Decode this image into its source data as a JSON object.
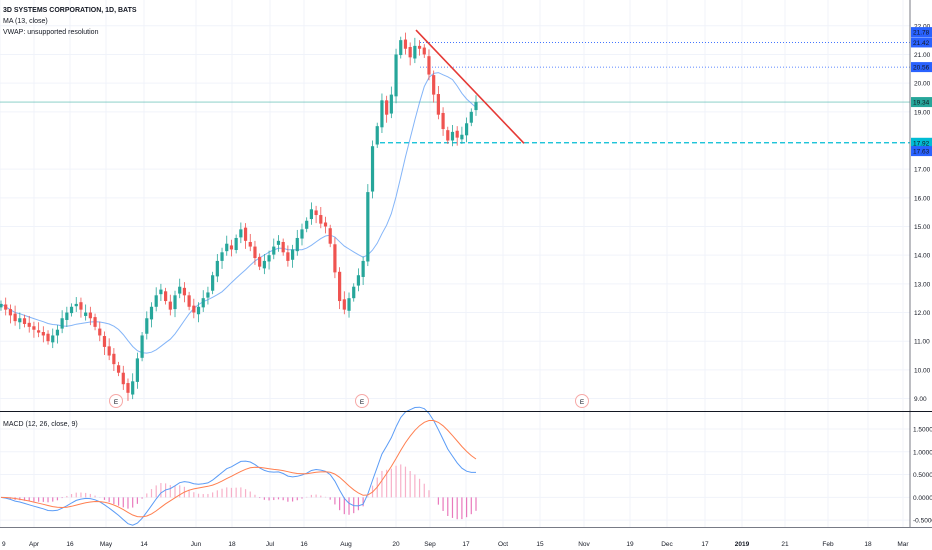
{
  "legend": {
    "symbol": "3D SYSTEMS CORPORATION, 1D, BATS",
    "ma": "MA (13, close)",
    "vwap": "VWAP: unsupported resolution",
    "macd": "MACD (12, 26, close, 9)"
  },
  "chart_data": [
    {
      "type": "candlestick",
      "title": "3D SYSTEMS CORPORATION, 1D, BATS",
      "ylim": [
        8.6,
        22.9
      ],
      "y_ticks": [
        "9.00",
        "10.00",
        "11.00",
        "12.00",
        "13.00",
        "14.00",
        "15.00",
        "16.00",
        "17.00",
        "19.00",
        "20.00",
        "21.00",
        "22.00"
      ],
      "x_ticks": [
        "9",
        "Apr",
        "16",
        "May",
        "14",
        "Jun",
        "18",
        "Jul",
        "16",
        "Aug",
        "20",
        "Sep",
        "17",
        "Oct",
        "15",
        "Nov",
        "19",
        "Dec",
        "17",
        "2019",
        "21",
        "Feb",
        "18",
        "Mar"
      ],
      "price_labels": [
        {
          "text": "21.78",
          "value": 21.78,
          "color": "#2962ff"
        },
        {
          "text": "21.42",
          "value": 21.42,
          "color": "#2962ff"
        },
        {
          "text": "20.56",
          "value": 20.56,
          "color": "#2962ff"
        },
        {
          "text": "19.34",
          "value": 19.34,
          "color": "#26a69a"
        },
        {
          "text": "17.92",
          "value": 17.92,
          "color": "#00bcd4"
        },
        {
          "text": "17.63",
          "value": 17.63,
          "color": "#2962ff"
        }
      ],
      "horizontal_lines": [
        {
          "value": 21.42,
          "style": "dotted",
          "color": "#2962ff"
        },
        {
          "value": 20.56,
          "style": "dotted",
          "color": "#2962ff"
        },
        {
          "value": 19.34,
          "style": "solid",
          "color": "#26a69a"
        },
        {
          "value": 17.92,
          "style": "dashed",
          "color": "#00bcd4"
        }
      ],
      "trendline": {
        "color": "#e53935",
        "from": {
          "date": "Aug 23",
          "value": 21.85
        },
        "to": {
          "date": "Oct 5",
          "value": 17.9
        }
      },
      "earnings_markers": [
        "E",
        "E",
        "E"
      ],
      "closes": [
        12.3,
        12.1,
        11.9,
        11.7,
        11.8,
        11.6,
        11.5,
        11.4,
        11.3,
        11.2,
        11.0,
        11.2,
        11.4,
        11.8,
        12.0,
        12.2,
        12.3,
        12.1,
        12.0,
        11.8,
        11.5,
        11.2,
        10.8,
        10.5,
        10.2,
        9.9,
        9.5,
        9.2,
        9.6,
        10.4,
        11.2,
        11.8,
        12.2,
        12.6,
        12.8,
        12.4,
        12.1,
        12.6,
        12.9,
        12.6,
        12.2,
        12.0,
        12.2,
        12.5,
        12.7,
        13.3,
        13.8,
        14.1,
        14.4,
        14.2,
        14.6,
        14.9,
        14.5,
        14.3,
        13.9,
        13.6,
        13.8,
        14.0,
        14.3,
        14.5,
        14.1,
        13.8,
        14.2,
        14.6,
        14.9,
        15.2,
        15.6,
        15.4,
        15.1,
        15.0,
        14.4,
        13.4,
        12.4,
        12.1,
        12.5,
        12.9,
        13.3,
        13.8,
        16.2,
        17.8,
        18.5,
        19.4,
        18.9,
        19.6,
        21.0,
        21.5,
        21.2,
        20.9,
        21.3,
        21.2,
        21.0,
        20.3,
        19.6,
        18.9,
        18.4,
        18.0,
        18.3,
        18.1,
        18.2,
        18.6,
        19.0,
        19.34
      ]
    },
    {
      "type": "line",
      "title": "MACD (12, 26, close, 9)",
      "ylim": [
        -0.65,
        1.85
      ],
      "y_ticks": [
        "1.5000",
        "1.0000",
        "0.5000",
        "0.0000",
        "-0.5000"
      ]
    }
  ]
}
